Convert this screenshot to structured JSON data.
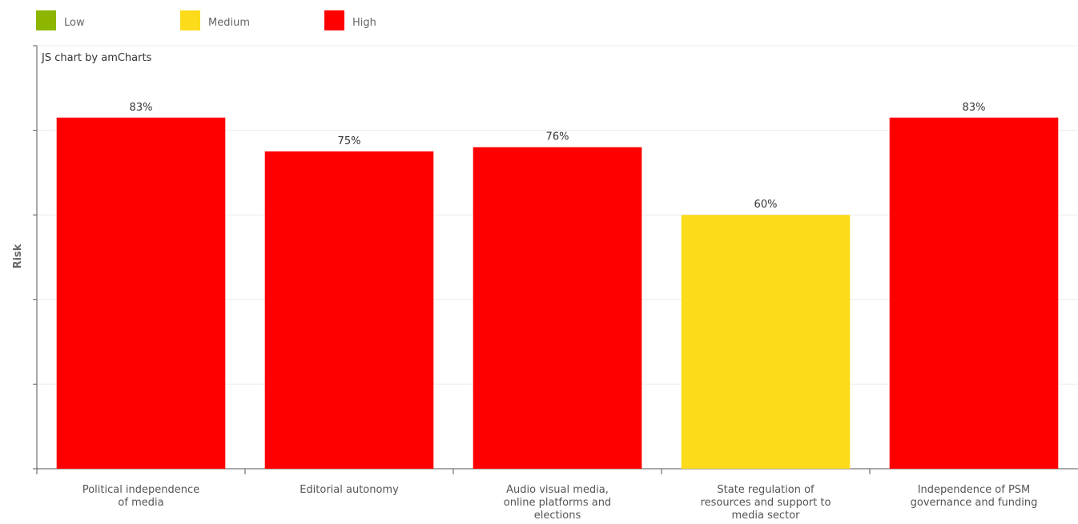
{
  "chart_data": {
    "type": "bar",
    "legend": [
      {
        "name": "Low",
        "color": "#8db600"
      },
      {
        "name": "Medium",
        "color": "#fcdc1a"
      },
      {
        "name": "High",
        "color": "#ff0000"
      }
    ],
    "credit": "JS chart by amCharts",
    "y_label": "Risk",
    "categories": [
      [
        "Political independence",
        "of media"
      ],
      [
        "Editorial autonomy"
      ],
      [
        "Audio visual media,",
        "online platforms and",
        "elections"
      ],
      [
        "State regulation of",
        "resources and support to",
        "media sector"
      ],
      [
        "Independence of PSM",
        "governance and funding"
      ]
    ],
    "values": [
      83,
      75,
      76,
      60,
      83
    ],
    "value_labels": [
      "83%",
      "75%",
      "76%",
      "60%",
      "83%"
    ],
    "colors": [
      "#ff0000",
      "#ff0000",
      "#ff0000",
      "#fcdc1a",
      "#ff0000"
    ],
    "ylim": [
      0,
      100
    ],
    "yticks": [
      0,
      20,
      40,
      60,
      80,
      100
    ],
    "grid": true
  }
}
